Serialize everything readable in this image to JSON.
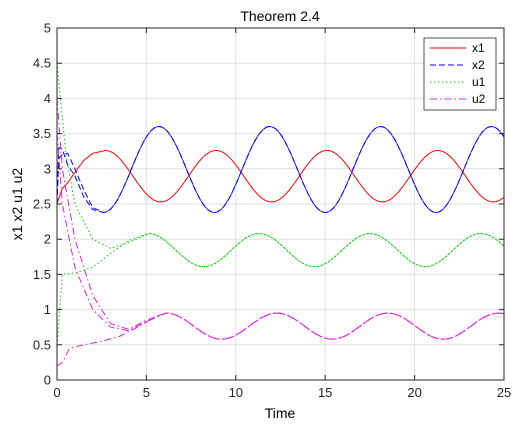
{
  "chart_data": {
    "type": "line",
    "title": "Theorem 2.4",
    "xlabel": "Time",
    "ylabel": "x1 x2 u1 u2",
    "xlim": [
      0,
      25
    ],
    "ylim": [
      0,
      5
    ],
    "xticks": [
      "0",
      "5",
      "10",
      "15",
      "20",
      "25"
    ],
    "yticks": [
      "0",
      "0.5",
      "1",
      "1.5",
      "2",
      "2.5",
      "3",
      "3.5",
      "4",
      "4.5",
      "5"
    ],
    "grid": true,
    "legend_position": "top-right",
    "period": 6.2,
    "series": [
      {
        "name": "x1",
        "color": "#ff0000",
        "line_style": "solid",
        "curves": [
          {
            "x": [
              0,
              0.1,
              0.3,
              0.6,
              1.0,
              1.5,
              2.0,
              2.7
            ],
            "y": [
              2.5,
              2.58,
              2.72,
              2.8,
              2.95,
              3.12,
              3.22,
              3.26
            ]
          }
        ],
        "steady_state": {
          "start": 2.7,
          "peaks_at": [
            2.7,
            8.9,
            15.1,
            21.3
          ],
          "max": 3.26,
          "min": 2.53
        }
      },
      {
        "name": "x2",
        "color": "#0000ff",
        "line_style": "dashed",
        "curves": [
          {
            "x": [
              0,
              0.1,
              0.3,
              0.6,
              1.0,
              1.5,
              2.0,
              2.6
            ],
            "y": [
              2.5,
              3.15,
              3.2,
              3.22,
              3.0,
              2.7,
              2.45,
              2.38
            ]
          },
          {
            "x": [
              0,
              0.1,
              0.3,
              0.6,
              1.0,
              1.5,
              2.0,
              2.6
            ],
            "y": [
              2.5,
              3.3,
              3.28,
              3.05,
              2.9,
              2.6,
              2.42,
              2.38
            ]
          }
        ],
        "steady_state": {
          "start": 2.6,
          "peaks_at": [
            5.7,
            11.9,
            18.1,
            24.3
          ],
          "max": 3.6,
          "min": 2.38
        }
      },
      {
        "name": "u1",
        "color": "#00cc00",
        "line_style": "dotted",
        "curves": [
          {
            "x": [
              0,
              0.5,
              1.0,
              2.0,
              3.0,
              4.0,
              5.1
            ],
            "y": [
              4.5,
              3.2,
              2.5,
              2.0,
              1.87,
              1.95,
              2.08
            ]
          },
          {
            "x": [
              0,
              0.3,
              1.0,
              2.0,
              3.0,
              4.0,
              5.1
            ],
            "y": [
              0.5,
              1.5,
              1.52,
              1.6,
              1.8,
              1.98,
              2.08
            ]
          }
        ],
        "steady_state": {
          "start": 5.1,
          "peaks_at": [
            5.1,
            11.3,
            17.5,
            23.7
          ],
          "max": 2.08,
          "min": 1.61
        }
      },
      {
        "name": "u2",
        "color": "#e020e0",
        "line_style": "dash-dot",
        "curves": [
          {
            "x": [
              0,
              0.3,
              1.0,
              2.0,
              3.0,
              4.0,
              5.0,
              6.1
            ],
            "y": [
              4.0,
              3.0,
              2.0,
              1.2,
              0.8,
              0.72,
              0.85,
              0.95
            ]
          },
          {
            "x": [
              0,
              0.3,
              1.0,
              2.0,
              3.0,
              4.0,
              5.0,
              6.1
            ],
            "y": [
              3.5,
              2.5,
              1.6,
              1.0,
              0.75,
              0.7,
              0.83,
              0.95
            ]
          },
          {
            "x": [
              0,
              0.3,
              0.7,
              1.5,
              2.5,
              3.5,
              4.5,
              5.5,
              6.1
            ],
            "y": [
              0.2,
              0.25,
              0.45,
              0.5,
              0.55,
              0.62,
              0.75,
              0.9,
              0.95
            ]
          }
        ],
        "steady_state": {
          "start": 6.1,
          "peaks_at": [
            6.1,
            12.3,
            18.5,
            24.7
          ],
          "max": 0.95,
          "min": 0.58
        }
      }
    ]
  }
}
